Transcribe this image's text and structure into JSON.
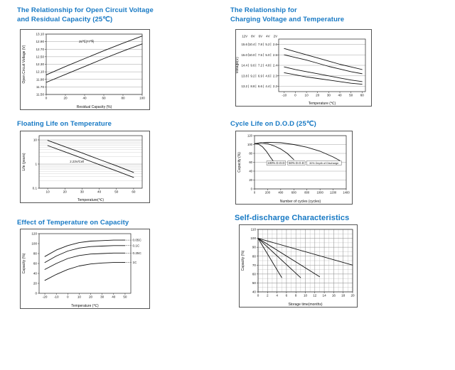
{
  "page": {
    "background": "#ffffff",
    "title_color": "#1779c4"
  },
  "chart_data": [
    {
      "id": "ocv-vs-residual-capacity",
      "type": "line",
      "title_line1": "The Relationship for Open Circuit Voltage",
      "title_line2": "and Residual Capacity (25℃)",
      "xlabel": "Residual Capacity (%)",
      "ylabel": "Open Circuit Voltage (V)",
      "x": {
        "range": [
          0,
          100
        ],
        "ticks": [
          0,
          20,
          40,
          60,
          80,
          100
        ],
        "tick_labels": [
          "0",
          "20",
          "40",
          "60",
          "80",
          "100"
        ]
      },
      "y": {
        "range": [
          11.5,
          13.1
        ],
        "ticks": [
          11.5,
          11.7,
          11.9,
          12.1,
          12.3,
          12.5,
          12.7,
          12.9,
          13.1
        ],
        "tick_labels": [
          "11.50",
          "11.70",
          "11.90",
          "12.10",
          "12.30",
          "12.50",
          "12.70",
          "12.90",
          "13.10"
        ]
      },
      "grid": {
        "y_ticks": true
      },
      "series": [
        {
          "name": "upper",
          "points": [
            [
              0,
              12.02
            ],
            [
              20,
              12.24
            ],
            [
              40,
              12.45
            ],
            [
              60,
              12.66
            ],
            [
              80,
              12.86
            ],
            [
              100,
              13.05
            ]
          ]
        },
        {
          "name": "lower",
          "points": [
            [
              0,
              11.82
            ],
            [
              20,
              12.03
            ],
            [
              40,
              12.24
            ],
            [
              60,
              12.45
            ],
            [
              80,
              12.65
            ],
            [
              100,
              12.84
            ]
          ]
        }
      ],
      "annotations": [
        {
          "x": 42,
          "y": 12.9,
          "text": "25℃(77℉)"
        }
      ]
    },
    {
      "id": "charging-voltage-vs-temperature",
      "type": "line",
      "title_line1": "The Relationship for",
      "title_line2": "Charging Voltage and Temperature",
      "xlabel": "Temperature (℃)",
      "ylabel": "Voltage(V)",
      "x": {
        "range": [
          -15,
          63
        ],
        "ticks": [
          -10,
          0,
          10,
          20,
          30,
          40,
          50,
          60
        ],
        "tick_labels": [
          "-10",
          "0",
          "10",
          "20",
          "30",
          "40",
          "50",
          "60"
        ]
      },
      "y": {
        "range": [
          2.15,
          2.65
        ],
        "ticks": [
          2.6,
          2.5,
          2.4,
          2.3,
          2.2
        ],
        "columns": {
          "header": [
            "12V",
            "8V",
            "6V",
            "4V",
            "2V"
          ],
          "rows": [
            [
              "15.6",
              "10.4",
              "7.8",
              "5.2",
              "2.6"
            ],
            [
              "15.0",
              "10.0",
              "7.5",
              "5.0",
              "2.5"
            ],
            [
              "14.4",
              "9.6",
              "7.2",
              "4.8",
              "2.4"
            ],
            [
              "13.8",
              "9.2",
              "6.9",
              "4.6",
              "2.3"
            ],
            [
              "13.2",
              "8.8",
              "6.6",
              "4.4",
              "2.2"
            ]
          ]
        }
      },
      "grid": {
        "y_ticks": true
      },
      "series": [
        {
          "name": "band1-upper",
          "points": [
            [
              -10,
              2.56
            ],
            [
              0,
              2.53
            ],
            [
              10,
              2.5
            ],
            [
              20,
              2.47
            ],
            [
              30,
              2.44
            ],
            [
              40,
              2.41
            ],
            [
              50,
              2.385
            ],
            [
              60,
              2.36
            ]
          ]
        },
        {
          "name": "band1-lower",
          "points": [
            [
              -10,
              2.5
            ],
            [
              0,
              2.475
            ],
            [
              10,
              2.45
            ],
            [
              20,
              2.42
            ],
            [
              30,
              2.39
            ],
            [
              40,
              2.365
            ],
            [
              50,
              2.34
            ],
            [
              60,
              2.32
            ]
          ]
        },
        {
          "name": "band2-upper",
          "points": [
            [
              -10,
              2.385
            ],
            [
              0,
              2.36
            ],
            [
              10,
              2.34
            ],
            [
              20,
              2.32
            ],
            [
              30,
              2.3
            ],
            [
              40,
              2.28
            ],
            [
              50,
              2.26
            ],
            [
              60,
              2.245
            ]
          ]
        },
        {
          "name": "band2-lower",
          "points": [
            [
              -10,
              2.33
            ],
            [
              0,
              2.31
            ],
            [
              10,
              2.29
            ],
            [
              20,
              2.275
            ],
            [
              30,
              2.26
            ],
            [
              40,
              2.245
            ],
            [
              50,
              2.23
            ],
            [
              60,
              2.22
            ]
          ]
        }
      ],
      "annotations": []
    },
    {
      "id": "floating-life-vs-temperature",
      "type": "line",
      "title_line1": "Floating Life on Temperature",
      "title_line2": "",
      "xlabel": "Temperature(℃)",
      "ylabel": "Life (years)",
      "x": {
        "range": [
          5,
          65
        ],
        "ticks": [
          10,
          20,
          30,
          40,
          50,
          60
        ],
        "tick_labels": [
          "10",
          "20",
          "30",
          "40",
          "50",
          "60"
        ]
      },
      "y": {
        "log": true,
        "range": [
          0.1,
          15
        ],
        "ticks": [
          0.1,
          1,
          10
        ],
        "tick_labels": [
          "0.1",
          "1",
          "10"
        ]
      },
      "grid": {
        "y_ticks": true,
        "y_log_minor": true
      },
      "series": [
        {
          "name": "upper",
          "points": [
            [
              10,
              9.5
            ],
            [
              20,
              5.2
            ],
            [
              30,
              2.9
            ],
            [
              40,
              1.55
            ],
            [
              50,
              0.85
            ],
            [
              60,
              0.45
            ]
          ]
        },
        {
          "name": "lower",
          "points": [
            [
              10,
              5.8
            ],
            [
              20,
              3.2
            ],
            [
              30,
              1.75
            ],
            [
              40,
              0.95
            ],
            [
              50,
              0.52
            ],
            [
              60,
              0.28
            ]
          ]
        }
      ],
      "annotations": [
        {
          "x": 27,
          "y": 1.25,
          "text": "2.23V/Cell"
        }
      ]
    },
    {
      "id": "cycle-life-vs-dod",
      "type": "line",
      "title_line1": "Cycle Life on D.O.D (25℃)",
      "title_line2": "",
      "xlabel": "Number of cycles (cycles)",
      "ylabel": "Capacity (%)",
      "tick_size": 4.2,
      "x": {
        "range": [
          0,
          1400
        ],
        "ticks": [
          0,
          200,
          400,
          600,
          800,
          1000,
          1200,
          1400
        ],
        "tick_labels": [
          "0",
          "200",
          "400",
          "600",
          "800",
          "1000",
          "1200",
          "1400"
        ]
      },
      "y": {
        "range": [
          0,
          120
        ],
        "ticks": [
          0,
          20,
          40,
          60,
          80,
          100,
          120
        ],
        "tick_labels": [
          "0",
          "20",
          "40",
          "60",
          "80",
          "100",
          "120"
        ]
      },
      "grid": {
        "y_ticks": true
      },
      "series": [
        {
          "name": "100% D.O.D",
          "points": [
            [
              0,
              102
            ],
            [
              60,
              101
            ],
            [
              120,
              95
            ],
            [
              180,
              85
            ],
            [
              240,
              72
            ],
            [
              300,
              60
            ]
          ]
        },
        {
          "name": "50% D.O.D",
          "points": [
            [
              0,
              102
            ],
            [
              100,
              104
            ],
            [
              200,
              102
            ],
            [
              300,
              97
            ],
            [
              400,
              90
            ],
            [
              500,
              80
            ],
            [
              600,
              66
            ]
          ]
        },
        {
          "name": "30% D.O.D",
          "points": [
            [
              0,
              102
            ],
            [
              200,
              105
            ],
            [
              400,
              104
            ],
            [
              600,
              100
            ],
            [
              800,
              94
            ],
            [
              1000,
              85
            ],
            [
              1200,
              72
            ],
            [
              1300,
              64
            ]
          ]
        }
      ],
      "annotations": [
        {
          "x": 330,
          "y": 58,
          "text": "100% D.O.D",
          "boxed": true
        },
        {
          "x": 640,
          "y": 58,
          "text": "50% D.O.D",
          "boxed": true
        },
        {
          "x": 1060,
          "y": 58,
          "text": "30% Depth of Discharge",
          "boxed": true,
          "size": 3.8
        }
      ]
    },
    {
      "id": "temperature-effect-on-capacity",
      "type": "line",
      "title_line1": "Effect of Temperature on Capacity",
      "title_line2": "",
      "xlabel": "Temperature (℃)",
      "ylabel": "Capacity (%)",
      "x": {
        "range": [
          -25,
          55
        ],
        "ticks": [
          -20,
          -10,
          0,
          10,
          20,
          30,
          40,
          50
        ],
        "tick_labels": [
          "-20",
          "-10",
          "0",
          "10",
          "20",
          "30",
          "40",
          "50"
        ]
      },
      "y": {
        "range": [
          0,
          120
        ],
        "ticks": [
          0,
          20,
          40,
          60,
          80,
          100,
          120
        ],
        "tick_labels": [
          "0",
          "20",
          "40",
          "60",
          "80",
          "100",
          "120"
        ]
      },
      "grid": {},
      "series": [
        {
          "name": "0.05C",
          "points": [
            [
              -20,
              74
            ],
            [
              -10,
              87
            ],
            [
              0,
              96
            ],
            [
              10,
              102
            ],
            [
              20,
              105
            ],
            [
              30,
              106
            ],
            [
              40,
              107
            ],
            [
              50,
              107
            ]
          ]
        },
        {
          "name": "0.1C",
          "points": [
            [
              -20,
              62
            ],
            [
              -10,
              75
            ],
            [
              0,
              85
            ],
            [
              10,
              91
            ],
            [
              20,
              94
            ],
            [
              30,
              95
            ],
            [
              40,
              96
            ],
            [
              50,
              96
            ]
          ]
        },
        {
          "name": "0.25C",
          "points": [
            [
              -20,
              48
            ],
            [
              -10,
              60
            ],
            [
              0,
              70
            ],
            [
              10,
              76
            ],
            [
              20,
              79
            ],
            [
              30,
              80
            ],
            [
              40,
              81
            ],
            [
              50,
              81
            ]
          ]
        },
        {
          "name": "1C",
          "points": [
            [
              -20,
              26
            ],
            [
              -10,
              38
            ],
            [
              0,
              48
            ],
            [
              10,
              55
            ],
            [
              20,
              59
            ],
            [
              30,
              61
            ],
            [
              40,
              62
            ],
            [
              50,
              62
            ]
          ]
        }
      ],
      "right_labels": [
        {
          "y": 107,
          "text": "0.05C"
        },
        {
          "y": 96,
          "text": "0.1C"
        },
        {
          "y": 81,
          "text": "0.25C"
        },
        {
          "y": 62,
          "text": "1C"
        }
      ],
      "annotations": []
    },
    {
      "id": "self-discharge-characteristics",
      "type": "line",
      "title_line1": "Self-discharge Characteristics",
      "title_line2": "",
      "xlabel": "Storage time(months)",
      "ylabel": "Capacity (%)",
      "x": {
        "range": [
          0,
          20
        ],
        "ticks": [
          0,
          2,
          4,
          6,
          8,
          10,
          12,
          14,
          16,
          18,
          20
        ],
        "tick_labels": [
          "0",
          "2",
          "4",
          "6",
          "8",
          "10",
          "12",
          "14",
          "16",
          "18",
          "20"
        ]
      },
      "y": {
        "range": [
          40,
          110
        ],
        "ticks": [
          40,
          50,
          60,
          70,
          80,
          90,
          100,
          110
        ],
        "tick_labels": [
          "40",
          "50",
          "60",
          "70",
          "80",
          "90",
          "100",
          "110"
        ]
      },
      "grid": {
        "x_step": 1,
        "y_step": 5,
        "y_ticks": true,
        "x_ticks_grid": true
      },
      "series": [
        {
          "name": "line1",
          "points": [
            [
              0,
              100
            ],
            [
              5,
              56
            ]
          ]
        },
        {
          "name": "line2",
          "points": [
            [
              0,
              100
            ],
            [
              9,
              56
            ]
          ]
        },
        {
          "name": "line3",
          "points": [
            [
              0,
              100
            ],
            [
              13,
              57
            ]
          ]
        },
        {
          "name": "line4",
          "points": [
            [
              0,
              100
            ],
            [
              20,
              70
            ]
          ]
        }
      ],
      "annotations": []
    }
  ]
}
